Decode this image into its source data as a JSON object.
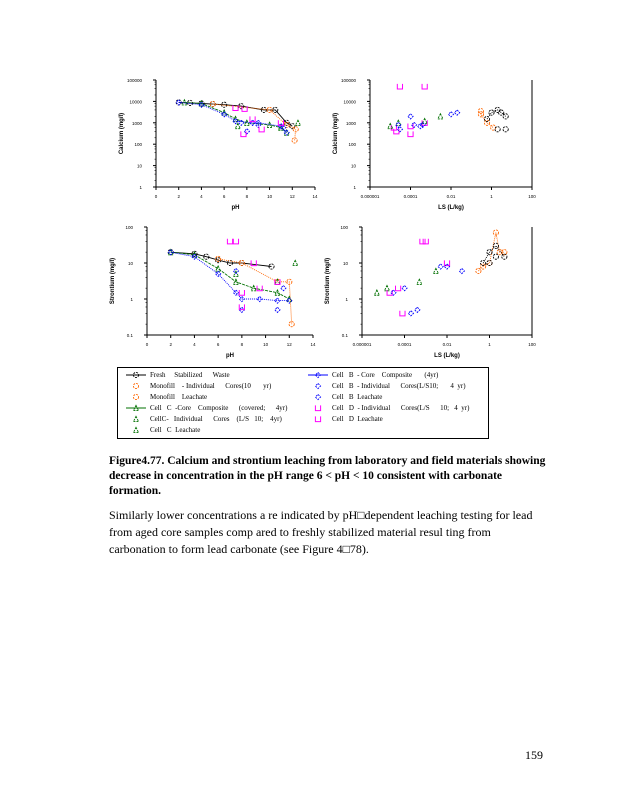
{
  "colors": {
    "fresh": "#000000",
    "monofill": "#ff6600",
    "cellC": "#007000",
    "cellB": "#0000ff",
    "cellD": "#ff00ff"
  },
  "chart_data": [
    {
      "type": "scatter",
      "id": "ca-ph",
      "xlabel": "pH",
      "ylabel": "Calcium   (mg/l)",
      "xscale": "linear",
      "yscale": "log",
      "xlim": [
        0,
        14
      ],
      "ylim": [
        1,
        100000
      ],
      "xticks": [
        "0",
        "2",
        "4",
        "6",
        "8",
        "10",
        "12",
        "14"
      ],
      "yticks": [
        "1",
        "10",
        "100",
        "1000",
        "10000",
        "100000"
      ],
      "series": [
        {
          "name": "Fresh Stabilized Waste",
          "color": "fresh",
          "marker": "circle",
          "line": "solid",
          "points": [
            [
              2,
              9000
            ],
            [
              3,
              8500
            ],
            [
              4,
              8000
            ],
            [
              5,
              7500
            ],
            [
              6,
              7000
            ],
            [
              7.5,
              6000
            ],
            [
              9.5,
              4000
            ],
            [
              10.5,
              4000
            ],
            [
              11.5,
              1000
            ],
            [
              12,
              700
            ]
          ]
        },
        {
          "name": "Monofill - Individual Cores",
          "color": "monofill",
          "marker": "circle",
          "line": "dotted",
          "points": [
            [
              5,
              7500
            ],
            [
              10,
              4000
            ],
            [
              11.5,
              800
            ],
            [
              12.3,
              500
            ],
            [
              12.2,
              150
            ]
          ]
        },
        {
          "name": "Cell C Core Composite",
          "color": "cellC",
          "marker": "triangle",
          "line": "dashed",
          "points": [
            [
              2.5,
              9000
            ],
            [
              4,
              8000
            ],
            [
              6,
              3000
            ],
            [
              7,
              1500
            ],
            [
              8,
              1000
            ],
            [
              10,
              800
            ],
            [
              11,
              600
            ],
            [
              11.5,
              350
            ]
          ]
        },
        {
          "name": "Cell C Individual Cores",
          "color": "cellC",
          "marker": "triangle",
          "line": "none",
          "points": [
            [
              7.2,
              700
            ],
            [
              11,
              600
            ],
            [
              12.5,
              1000
            ]
          ]
        },
        {
          "name": "Cell B Core Composite",
          "color": "cellB",
          "marker": "diamond",
          "line": "dotted",
          "points": [
            [
              2,
              9000
            ],
            [
              4,
              7000
            ],
            [
              6,
              2500
            ],
            [
              7,
              1200
            ],
            [
              8.5,
              1000
            ],
            [
              9,
              1000
            ],
            [
              11,
              700
            ],
            [
              11.5,
              350
            ]
          ]
        },
        {
          "name": "Cell B Individual Cores",
          "color": "cellB",
          "marker": "diamond",
          "line": "none",
          "points": [
            [
              7.5,
              1000
            ],
            [
              8,
              400
            ],
            [
              8.5,
              1000
            ],
            [
              9,
              800
            ],
            [
              11.2,
              600
            ]
          ]
        },
        {
          "name": "Cell D Individual Cores",
          "color": "cellD",
          "marker": "square",
          "line": "none",
          "points": [
            [
              7,
              5000
            ],
            [
              7.8,
              4500
            ],
            [
              8.5,
              1500
            ],
            [
              9.3,
              500
            ],
            [
              7.7,
              300
            ],
            [
              11,
              1000
            ]
          ]
        }
      ]
    },
    {
      "type": "scatter",
      "id": "ca-ls",
      "xlabel": "LS     (L/kg)",
      "ylabel": "Calcium   (mg/l)",
      "xscale": "log",
      "yscale": "log",
      "xlim": [
        1e-06,
        100
      ],
      "ylim": [
        1,
        100000
      ],
      "xticks": [
        "0.000001",
        "0.0001",
        "0.01",
        "1",
        "100"
      ],
      "yticks": [
        "1",
        "10",
        "100",
        "1000",
        "10000",
        "100000"
      ],
      "series": [
        {
          "name": "Cell D",
          "color": "cellD",
          "marker": "square",
          "line": "none",
          "points": [
            [
              3e-05,
              50000
            ],
            [
              1.5e-05,
              600
            ],
            [
              2e-05,
              400
            ],
            [
              0.0001,
              700
            ],
            [
              0.0001,
              300
            ],
            [
              0.0005,
              50000
            ],
            [
              0.0005,
              1000
            ]
          ]
        },
        {
          "name": "Cell C",
          "color": "cellC",
          "marker": "triangle",
          "line": "none",
          "points": [
            [
              1e-05,
              700
            ],
            [
              2.5e-05,
              1000
            ],
            [
              0.0005,
              1200
            ],
            [
              0.003,
              2000
            ]
          ]
        },
        {
          "name": "Cell B",
          "color": "cellB",
          "marker": "diamond",
          "line": "none",
          "points": [
            [
              2.5e-05,
              800
            ],
            [
              3e-05,
              500
            ],
            [
              0.0001,
              2000
            ],
            [
              0.00015,
              800
            ],
            [
              0.0003,
              700
            ],
            [
              0.0004,
              800
            ],
            [
              0.01,
              2500
            ],
            [
              0.02,
              3000
            ]
          ]
        },
        {
          "name": "Monofill",
          "color": "monofill",
          "marker": "circle",
          "line": "dotted",
          "points": [
            [
              0.3,
              3500
            ],
            [
              0.3,
              2500
            ],
            [
              0.6,
              1000
            ],
            [
              1.2,
              600
            ]
          ]
        },
        {
          "name": "Fresh",
          "color": "fresh",
          "marker": "circle",
          "line": "dotted",
          "points": [
            [
              0.6,
              1500
            ],
            [
              1,
              3000
            ],
            [
              2,
              4000
            ],
            [
              3,
              3000
            ],
            [
              5,
              2000
            ]
          ]
        },
        {
          "name": "Fresh 2",
          "color": "fresh",
          "marker": "circle",
          "line": "none",
          "points": [
            [
              2,
              500
            ],
            [
              5,
              500
            ]
          ]
        }
      ]
    },
    {
      "type": "scatter",
      "id": "sr-ph",
      "xlabel": "pH",
      "ylabel": "Strontium   (mg/l)",
      "xscale": "linear",
      "yscale": "log",
      "xlim": [
        0,
        14
      ],
      "ylim": [
        0.1,
        100
      ],
      "xticks": [
        "0",
        "2",
        "4",
        "6",
        "8",
        "10",
        "12",
        "14"
      ],
      "yticks": [
        "0.1",
        "1",
        "10",
        "100"
      ],
      "series": [
        {
          "name": "Fresh",
          "color": "fresh",
          "marker": "circle",
          "line": "solid",
          "points": [
            [
              2,
              20
            ],
            [
              4,
              18
            ],
            [
              5,
              15
            ],
            [
              6,
              12
            ],
            [
              7,
              10
            ],
            [
              8,
              10
            ],
            [
              10.5,
              8
            ]
          ]
        },
        {
          "name": "Monofill",
          "color": "monofill",
          "marker": "circle",
          "line": "dotted",
          "points": [
            [
              6,
              13
            ],
            [
              8,
              10
            ],
            [
              11,
              3
            ],
            [
              12,
              3
            ],
            [
              12.2,
              0.2
            ]
          ]
        },
        {
          "name": "Cell C composite",
          "color": "cellC",
          "marker": "triangle",
          "line": "dashed",
          "points": [
            [
              2,
              20
            ],
            [
              4,
              17
            ],
            [
              6,
              7
            ],
            [
              7.5,
              3
            ],
            [
              9,
              2
            ],
            [
              11,
              1.5
            ],
            [
              12,
              1
            ]
          ]
        },
        {
          "name": "Cell C individual",
          "color": "cellC",
          "marker": "triangle",
          "line": "none",
          "points": [
            [
              7.5,
              5
            ],
            [
              11,
              3
            ],
            [
              12.5,
              10
            ]
          ]
        },
        {
          "name": "Cell B composite",
          "color": "cellB",
          "marker": "diamond",
          "line": "dotted",
          "points": [
            [
              2,
              20
            ],
            [
              4,
              15
            ],
            [
              6,
              5
            ],
            [
              7.5,
              1.5
            ],
            [
              8,
              1
            ],
            [
              9.5,
              1
            ],
            [
              11,
              0.9
            ],
            [
              12,
              0.9
            ]
          ]
        },
        {
          "name": "Cell B individual",
          "color": "cellB",
          "marker": "diamond",
          "line": "none",
          "points": [
            [
              7.5,
              6
            ],
            [
              8,
              0.5
            ],
            [
              11,
              0.5
            ],
            [
              11.5,
              2
            ]
          ]
        },
        {
          "name": "Cell D",
          "color": "cellD",
          "marker": "square",
          "line": "none",
          "points": [
            [
              7,
              40
            ],
            [
              7.5,
              40
            ],
            [
              9,
              10
            ],
            [
              8,
              1.5
            ],
            [
              8,
              0.6
            ],
            [
              9.5,
              2
            ],
            [
              11,
              3
            ]
          ]
        }
      ]
    },
    {
      "type": "scatter",
      "id": "sr-ls",
      "xlabel": "LS     (L/kg)",
      "ylabel": "Strontium   (mg/l)",
      "xscale": "log",
      "yscale": "log",
      "xlim": [
        1e-06,
        100
      ],
      "ylim": [
        0.1,
        100
      ],
      "xticks": [
        "0.000001",
        "0.0001",
        "0.01",
        "1",
        "100"
      ],
      "yticks": [
        "0.1",
        "1",
        "10",
        "100"
      ],
      "series": [
        {
          "name": "Cell D",
          "color": "cellD",
          "marker": "square",
          "line": "none",
          "points": [
            [
              0.0007,
              40
            ],
            [
              0.001,
              40
            ],
            [
              2e-05,
              1.5
            ],
            [
              5e-05,
              2
            ],
            [
              8e-05,
              0.4
            ],
            [
              0.01,
              10
            ]
          ]
        },
        {
          "name": "Cell C",
          "color": "cellC",
          "marker": "triangle",
          "line": "none",
          "points": [
            [
              5e-06,
              1.5
            ],
            [
              1.5e-05,
              2
            ],
            [
              0.0005,
              3
            ],
            [
              0.003,
              6
            ]
          ]
        },
        {
          "name": "Cell B",
          "color": "cellB",
          "marker": "diamond",
          "line": "none",
          "points": [
            [
              3e-05,
              1.5
            ],
            [
              0.0001,
              2
            ],
            [
              0.0002,
              0.4
            ],
            [
              0.0004,
              0.5
            ],
            [
              0.005,
              8
            ],
            [
              0.01,
              8
            ],
            [
              0.05,
              6
            ]
          ]
        },
        {
          "name": "Monofill",
          "color": "monofill",
          "marker": "circle",
          "line": "dotted",
          "points": [
            [
              0.3,
              6
            ],
            [
              0.5,
              8
            ],
            [
              1,
              10
            ],
            [
              2,
              70
            ],
            [
              3,
              20
            ],
            [
              5,
              20
            ]
          ]
        },
        {
          "name": "Fresh",
          "color": "fresh",
          "marker": "circle",
          "line": "dotted",
          "points": [
            [
              0.5,
              10
            ],
            [
              1,
              20
            ],
            [
              2,
              30
            ],
            [
              5,
              15
            ]
          ]
        },
        {
          "name": "Fresh 2",
          "color": "fresh",
          "marker": "circle",
          "line": "none",
          "points": [
            [
              1,
              10
            ],
            [
              2,
              15
            ]
          ]
        }
      ]
    }
  ],
  "legend": [
    {
      "label": "Fresh     Stabilized      Waste",
      "color": "fresh",
      "marker": "circle",
      "line": true
    },
    {
      "label": "Monofill    - Individual      Cores(10       yr)",
      "color": "monofill",
      "marker": "circle",
      "line": false
    },
    {
      "label": "Monofill    Leachate",
      "color": "monofill",
      "marker": "circle",
      "line": false
    },
    {
      "label": "Cell   C  -Core    Composite      (covered;      4yr)",
      "color": "cellC",
      "marker": "triangle",
      "line": true
    },
    {
      "label": "CellC-   Individual      Cores    (L/S   10;    4yr)",
      "color": "cellC",
      "marker": "triangle",
      "line": false
    },
    {
      "label": "Cell   C  Leachate",
      "color": "cellC",
      "marker": "triangle",
      "line": false
    },
    {
      "label": "Cell   B  - Core    Composite       (4yr)",
      "color": "cellB",
      "marker": "diamond",
      "line": true
    },
    {
      "label": "Cell   B  - Individual      Cores(L/S10;       4  yr)",
      "color": "cellB",
      "marker": "diamond",
      "line": false
    },
    {
      "label": "Cell   B  Leachate",
      "color": "cellB",
      "marker": "diamond",
      "line": false
    },
    {
      "label": "Cell   D  - Individual      Cores(L/S      10;   4  yr)",
      "color": "cellD",
      "marker": "square",
      "line": false
    },
    {
      "label": "Cell   D  Leachate",
      "color": "cellD",
      "marker": "square",
      "line": false
    }
  ],
  "caption": {
    "line1": "Figure4.77.   Calcium and strontium leaching from laboratory and field materials showing",
    "line2": "decrease in concentration in the pH range 6 < pH < 10 consistent with carbonate formation."
  },
  "paragraph": "Similarly lower concentrations a re indicated by pH□dependent leaching testing for lead from aged core samples comp ared to freshly stabilized material resul   ting from carbonation to form lead carbonate (see Figure 4□78).",
  "page_number": "159"
}
